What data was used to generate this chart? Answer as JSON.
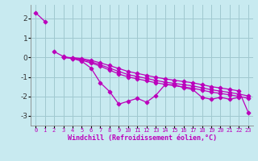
{
  "background_color": "#c8eaf0",
  "grid_color": "#a0c8d0",
  "line_color": "#bb00bb",
  "marker": "D",
  "xlim": [
    -0.5,
    23.5
  ],
  "ylim": [
    -3.5,
    2.7
  ],
  "yticks": [
    -3,
    -2,
    -1,
    0,
    1,
    2
  ],
  "xticks": [
    0,
    1,
    2,
    3,
    4,
    5,
    6,
    7,
    8,
    9,
    10,
    11,
    12,
    13,
    14,
    15,
    16,
    17,
    18,
    19,
    20,
    21,
    22,
    23
  ],
  "xlabel": "Windchill (Refroidissement éolien,°C)",
  "xlabel_color": "#bb00bb",
  "series": [
    {
      "x": [
        0,
        1
      ],
      "y": [
        2.3,
        1.85
      ]
    },
    {
      "x": [
        2,
        3,
        4,
        5,
        6,
        7,
        8,
        9,
        10,
        11,
        12,
        13,
        14,
        15,
        16,
        17,
        18,
        19,
        20,
        21,
        22
      ],
      "y": [
        0.3,
        0.05,
        -0.05,
        -0.2,
        -0.55,
        -1.3,
        -1.75,
        -2.4,
        -2.25,
        -2.1,
        -2.3,
        -1.95,
        -1.4,
        -1.4,
        -1.55,
        -1.65,
        -2.05,
        -2.15,
        -2.05,
        -2.15,
        -2.05
      ]
    },
    {
      "x": [
        3,
        4,
        5,
        6,
        7,
        8,
        9,
        10,
        11,
        12,
        13,
        14,
        15,
        16,
        17,
        18,
        19,
        20,
        21,
        22,
        23
      ],
      "y": [
        0.0,
        -0.05,
        -0.15,
        -0.28,
        -0.45,
        -0.65,
        -0.85,
        -1.0,
        -1.1,
        -1.2,
        -1.3,
        -1.38,
        -1.45,
        -1.52,
        -1.58,
        -1.68,
        -1.78,
        -1.85,
        -1.92,
        -2.0,
        -2.1
      ]
    },
    {
      "x": [
        3,
        4,
        5,
        6,
        7,
        8,
        9,
        10,
        11,
        12,
        13,
        14,
        15,
        16,
        17,
        18,
        19,
        20,
        21,
        22,
        23
      ],
      "y": [
        0.0,
        -0.03,
        -0.1,
        -0.22,
        -0.38,
        -0.55,
        -0.72,
        -0.88,
        -0.98,
        -1.08,
        -1.18,
        -1.27,
        -1.33,
        -1.4,
        -1.46,
        -1.56,
        -1.66,
        -1.73,
        -1.8,
        -1.88,
        -1.98
      ]
    },
    {
      "x": [
        3,
        4,
        5,
        6,
        7,
        8,
        9,
        10,
        11,
        12,
        13,
        14,
        15,
        16,
        17,
        18,
        19,
        20,
        21,
        22,
        23
      ],
      "y": [
        0.0,
        -0.01,
        -0.06,
        -0.15,
        -0.28,
        -0.42,
        -0.57,
        -0.72,
        -0.82,
        -0.92,
        -1.02,
        -1.1,
        -1.17,
        -1.24,
        -1.3,
        -1.4,
        -1.5,
        -1.57,
        -1.64,
        -1.72,
        -2.82
      ]
    }
  ]
}
